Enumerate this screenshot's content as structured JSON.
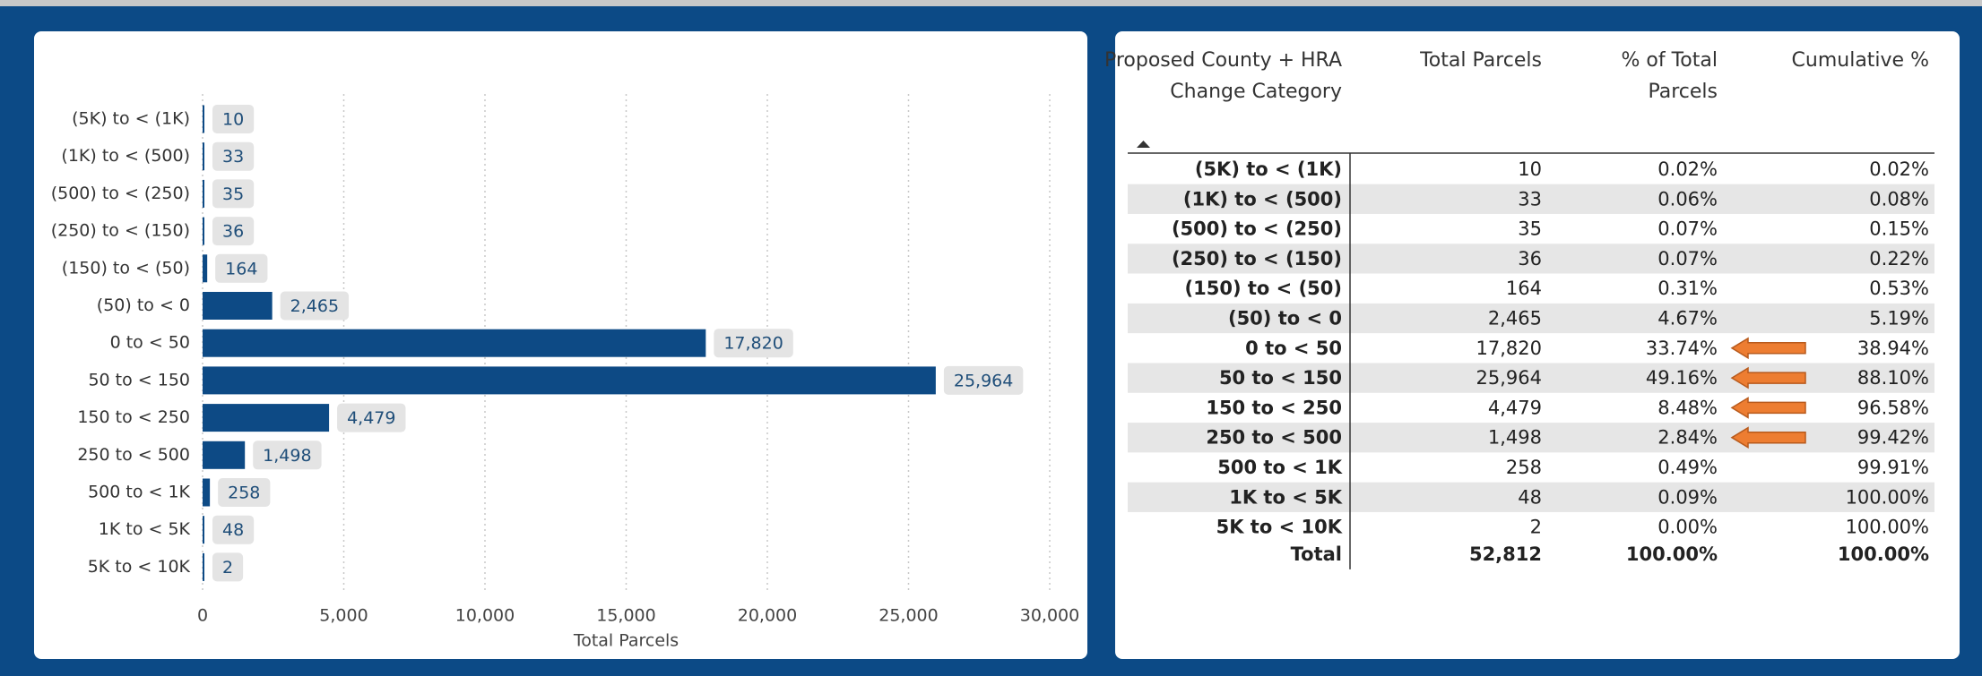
{
  "chart_data": {
    "type": "hbar",
    "x_label": "Total Parcels",
    "categories": [
      "(5K) to < (1K)",
      "(1K) to < (500)",
      "(500) to < (250)",
      "(250) to < (150)",
      "(150) to < (50)",
      "(50) to < 0",
      "0 to < 50",
      "50 to < 150",
      "150 to < 250",
      "250 to < 500",
      "500 to < 1K",
      "1K to < 5K",
      "5K to < 10K"
    ],
    "values": [
      10,
      33,
      35,
      36,
      164,
      2465,
      17820,
      25964,
      4479,
      1498,
      258,
      48,
      2
    ],
    "value_labels": [
      "10",
      "33",
      "35",
      "36",
      "164",
      "2,465",
      "17,820",
      "25,964",
      "4,479",
      "1,498",
      "258",
      "48",
      "2"
    ],
    "color": "#0d4a85",
    "xlim": [
      0,
      30000
    ],
    "xticks": [
      0,
      {
        "value": 5000,
        "label": "5,000"
      },
      {
        "value": 10000,
        "label": "10,000"
      },
      {
        "value": 15000,
        "label": "15,000"
      },
      {
        "value": 20000,
        "label": "20,000"
      },
      {
        "value": 25000,
        "label": "25,000"
      },
      {
        "value": 30000,
        "label": "30,000"
      }
    ],
    "grid": true
  },
  "table": {
    "columns": [
      "Proposed County + HRA Change Category",
      "Total Parcels",
      "% of Total Parcels",
      "Cumulative %"
    ],
    "rows": [
      [
        "(5K) to < (1K)",
        "10",
        "0.02%",
        "0.02%"
      ],
      [
        "(1K) to < (500)",
        "33",
        "0.06%",
        "0.08%"
      ],
      [
        "(500) to < (250)",
        "35",
        "0.07%",
        "0.15%"
      ],
      [
        "(250) to < (150)",
        "36",
        "0.07%",
        "0.22%"
      ],
      [
        "(150) to < (50)",
        "164",
        "0.31%",
        "0.53%"
      ],
      [
        "(50) to < 0",
        "2,465",
        "4.67%",
        "5.19%"
      ],
      [
        "0 to < 50",
        "17,820",
        "33.74%",
        "38.94%"
      ],
      [
        "50 to < 150",
        "25,964",
        "49.16%",
        "88.10%"
      ],
      [
        "150 to < 250",
        "4,479",
        "8.48%",
        "96.58%"
      ],
      [
        "250 to < 500",
        "1,498",
        "2.84%",
        "99.42%"
      ],
      [
        "500 to < 1K",
        "258",
        "0.49%",
        "99.91%"
      ],
      [
        "1K to < 5K",
        "48",
        "0.09%",
        "100.00%"
      ],
      [
        "5K to < 10K",
        "2",
        "0.00%",
        "100.00%"
      ]
    ],
    "total": [
      "Total",
      "52,812",
      "100.00%",
      "100.00%"
    ]
  }
}
